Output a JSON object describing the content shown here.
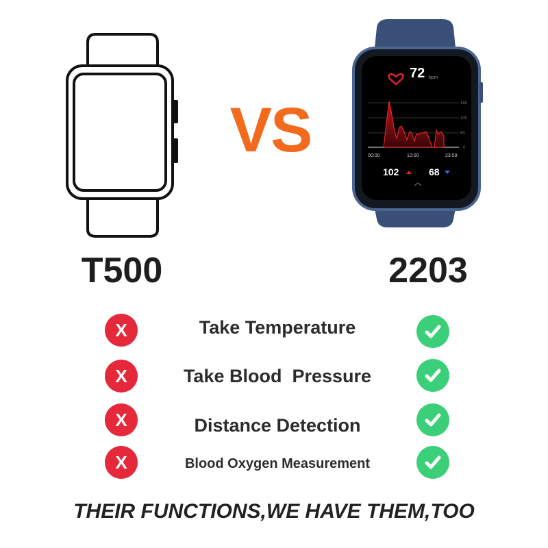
{
  "header": {
    "vs_label": "VS"
  },
  "left_product": {
    "model": "T500"
  },
  "right_product": {
    "model": "2203",
    "screen": {
      "heart_rate": "72",
      "unit": "bpm",
      "y_ticks": [
        "150",
        "100",
        "50",
        "0"
      ],
      "x_ticks": [
        "00:00",
        "12:00",
        "23:59"
      ],
      "max_value": "102",
      "min_value": "68"
    }
  },
  "features": [
    {
      "label": "Take Temperature",
      "left": "X",
      "right": "check"
    },
    {
      "label": "Take Blood  Pressure",
      "left": "X",
      "right": "check"
    },
    {
      "label": "Distance Detection",
      "left": "X",
      "right": "check"
    },
    {
      "label": "Blood Oxygen Measurement",
      "left": "X",
      "right": "check"
    }
  ],
  "slogan": "THEIR FUNCTIONS,WE HAVE THEM,TOO",
  "colors": {
    "vs": "#f26a1b",
    "cross": "#e5283a",
    "check": "#3ccf7a",
    "band": "#3a4f78"
  }
}
